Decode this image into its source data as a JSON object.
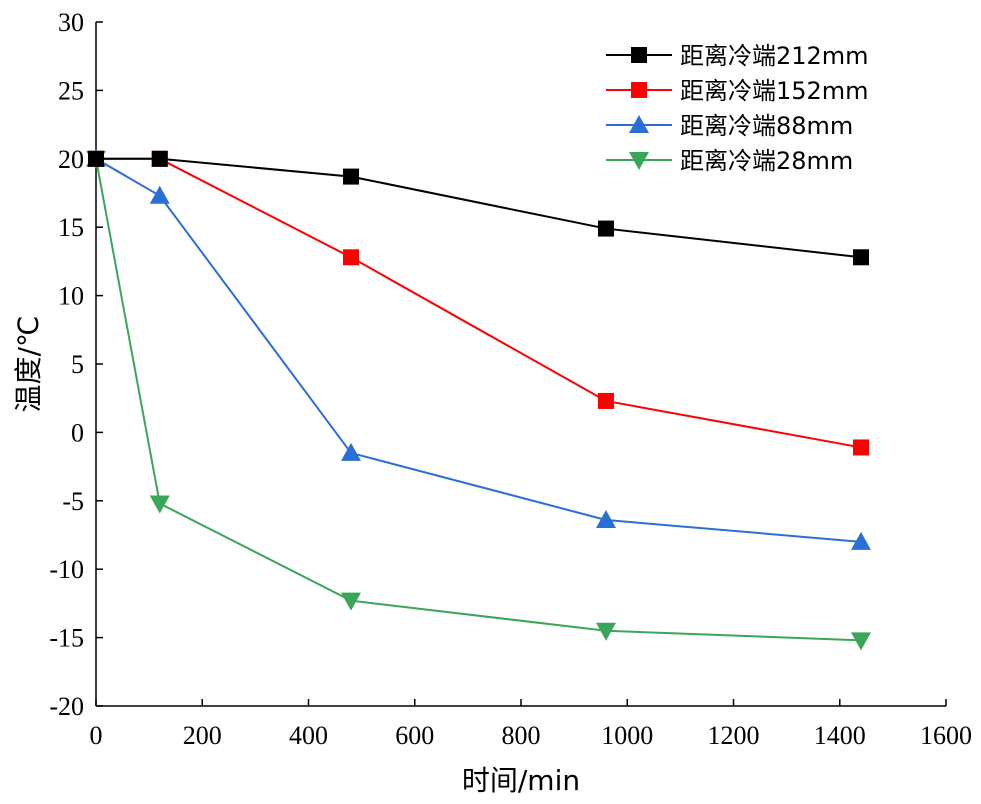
{
  "chart_data": {
    "type": "line",
    "title": "",
    "xlabel": "时间/min",
    "ylabel": "温度/℃",
    "xlim": [
      0,
      1600
    ],
    "ylim": [
      -20,
      30
    ],
    "xticks": [
      0,
      200,
      400,
      600,
      800,
      1000,
      1200,
      1400,
      1600
    ],
    "yticks": [
      -20,
      -15,
      -10,
      -5,
      0,
      5,
      10,
      15,
      20,
      25,
      30
    ],
    "grid": false,
    "legend_position": "top-right",
    "x": [
      0,
      120,
      480,
      960,
      1440
    ],
    "series": [
      {
        "name": "距离冷端212mm",
        "color": "#000000",
        "marker": "square",
        "values": [
          20,
          20,
          18.7,
          14.9,
          12.8
        ]
      },
      {
        "name": "距离冷端152mm",
        "color": "#ff0000",
        "marker": "square",
        "values": [
          20,
          20,
          12.8,
          2.3,
          -1.1
        ]
      },
      {
        "name": "距离冷端88mm",
        "color": "#2a6fd6",
        "marker": "triangle-up",
        "values": [
          20,
          17.3,
          -1.5,
          -6.4,
          -8.0
        ]
      },
      {
        "name": "距离冷端28mm",
        "color": "#3aa65a",
        "marker": "triangle-down",
        "values": [
          20,
          -5.2,
          -12.3,
          -14.5,
          -15.2
        ]
      }
    ]
  }
}
